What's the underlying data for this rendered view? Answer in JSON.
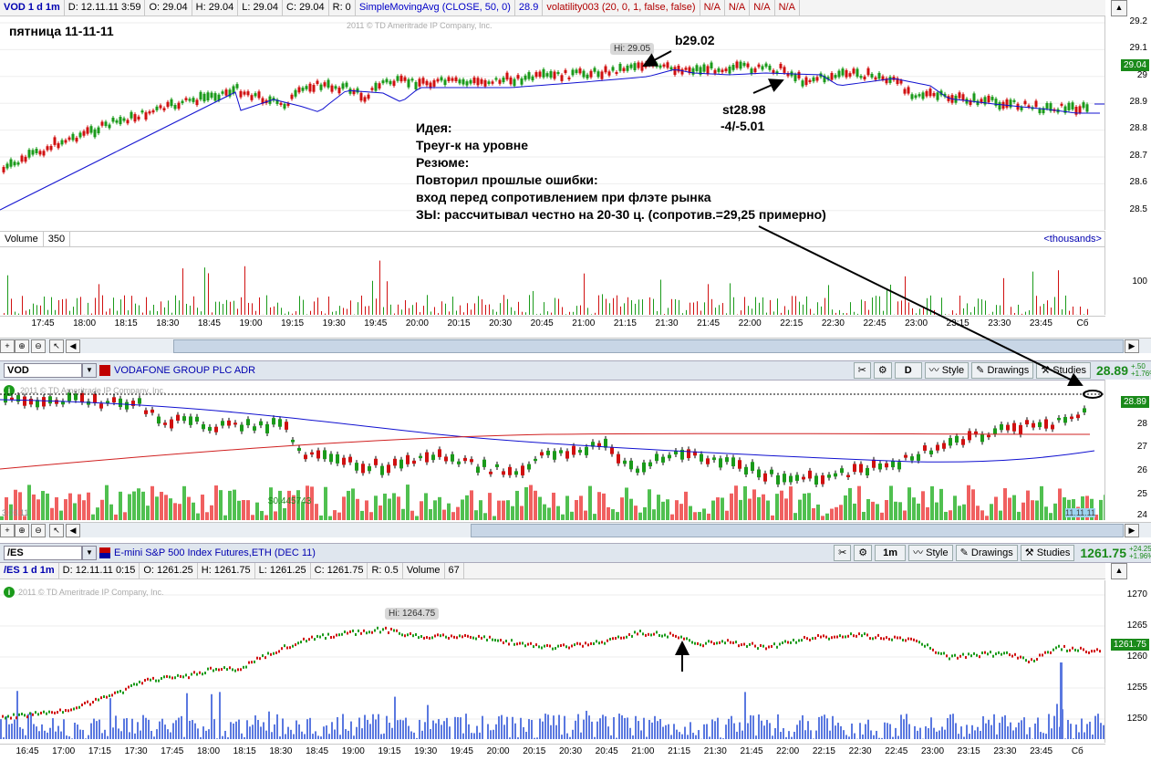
{
  "top_chart": {
    "header": {
      "symbol": "VOD 1 d 1m",
      "date": "D: 12.11.11 3:59",
      "open": "O: 29.04",
      "high": "H: 29.04",
      "low": "L: 29.04",
      "close": "C: 29.04",
      "range": "R: 0",
      "sma": "SimpleMovingAvg (CLOSE, 50, 0)",
      "sma_value": "28.9",
      "volatility": "volatility003 (20, 0, 1, false, false)",
      "na1": "N/A",
      "na2": "N/A",
      "na3": "N/A",
      "na4": "N/A"
    },
    "day_label": "пятница 11-11-11",
    "watermark": "2011 © TD Ameritrade IP Company, Inc.",
    "hi_label": "Hi: 29.05",
    "buy_label": "b29.02",
    "stop_label": "st28.98",
    "stop_result": "-4/-5.01",
    "notes": [
      "Идея:",
      "Треуг-к на уровне",
      "Резюме:",
      "Повторил прошлые ошибки:",
      "вход перед сопротивлением при флэте рынка",
      "ЗЫ: рассчитывал честно на 20-30 ц. (сопротив.=29,25 примерно)"
    ],
    "y_ticks": [
      "29.2",
      "29.1",
      "29",
      "28.9",
      "28.8",
      "28.7",
      "28.6",
      "28.5"
    ],
    "price_box": "29.04",
    "volume_label": "Volume",
    "volume_value": "350",
    "volume_units": "<thousands>",
    "volume_tick": "100",
    "x_ticks": [
      "17:45",
      "18:00",
      "18:15",
      "18:30",
      "18:45",
      "19:00",
      "19:15",
      "19:30",
      "19:45",
      "20:00",
      "20:15",
      "20:30",
      "20:45",
      "21:00",
      "21:15",
      "21:30",
      "21:45",
      "22:00",
      "22:15",
      "22:30",
      "22:45",
      "23:00",
      "23:15",
      "23:30",
      "23:45",
      "Сб"
    ]
  },
  "mid_chart": {
    "symbol_input": "VOD",
    "company": "VODAFONE GROUP PLC ADR",
    "period_button": "D",
    "style_button": "Style",
    "drawings_button": "Drawings",
    "studies_button": "Studies",
    "last_price": "28.89",
    "change": "+.50",
    "change_pct": "+1.76%",
    "watermark": "2011 © TD Ameritrade IP Company, Inc.",
    "price_box": "28.89",
    "y_ticks": [
      "28",
      "27",
      "26",
      "25",
      "24"
    ],
    "volume_note": "$0.445743",
    "left_label": "3.03.11",
    "right_label": "11.11.11"
  },
  "bottom_chart": {
    "symbol_input": "/ES",
    "company": "E-mini S&P 500 Index Futures,ETH (DEC 11)",
    "period_button": "1m",
    "style_button": "Style",
    "drawings_button": "Drawings",
    "studies_button": "Studies",
    "last_price": "1261.75",
    "change": "+24.25",
    "change_pct": "+1.96%",
    "header": {
      "symbol": "/ES 1 d 1m",
      "date": "D: 12.11.11 0:15",
      "open": "O: 1261.25",
      "high": "H: 1261.75",
      "low": "L: 1261.25",
      "close": "C: 1261.75",
      "range": "R: 0.5",
      "volume_label": "Volume",
      "volume_value": "67"
    },
    "watermark": "2011 © TD Ameritrade IP Company, Inc.",
    "hi_label": "Hi: 1264.75",
    "y_ticks": [
      "1270",
      "1265",
      "1260",
      "1255",
      "1250"
    ],
    "price_box": "1261.75",
    "x_ticks": [
      "16:45",
      "17:00",
      "17:15",
      "17:30",
      "17:45",
      "18:00",
      "18:15",
      "18:30",
      "18:45",
      "19:00",
      "19:15",
      "19:30",
      "19:45",
      "20:00",
      "20:15",
      "20:30",
      "20:45",
      "21:00",
      "21:15",
      "21:30",
      "21:45",
      "22:00",
      "22:15",
      "22:30",
      "22:45",
      "23:00",
      "23:15",
      "23:30",
      "23:45",
      "Сб"
    ]
  },
  "colors": {
    "up": "#1a9a1a",
    "down": "#d01010",
    "sma": "#1010d0",
    "ma200": "#d02020",
    "volume_blue": "#5a78e0"
  }
}
